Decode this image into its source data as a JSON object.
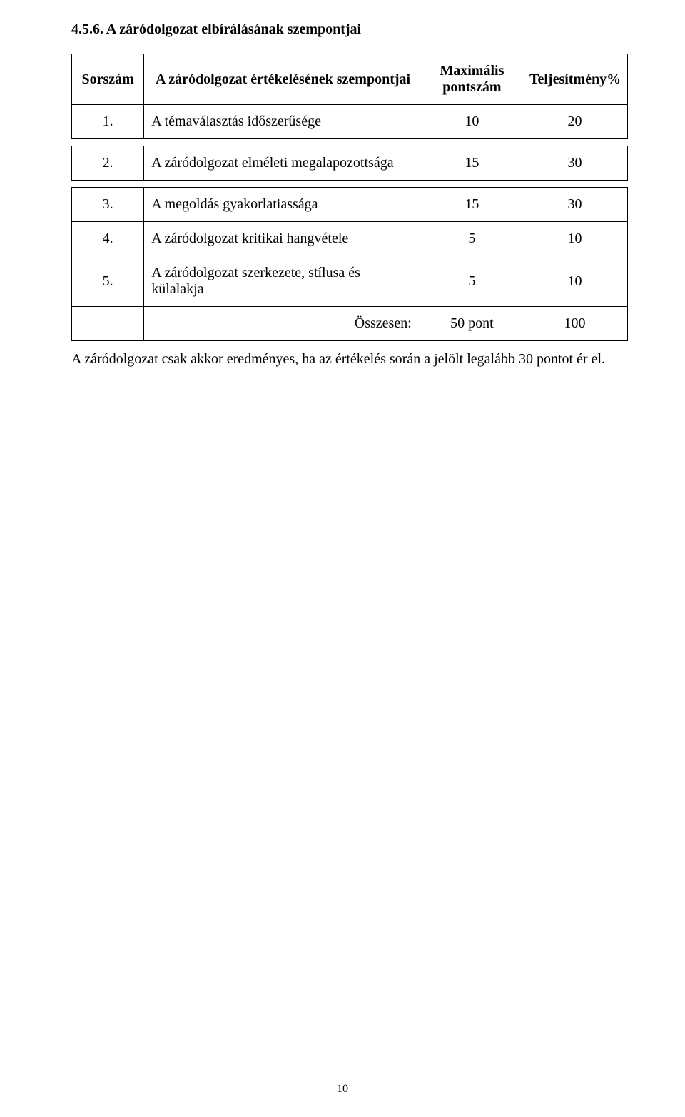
{
  "heading": "4.5.6. A záródolgozat elbírálásának szempontjai",
  "table": {
    "columns": {
      "idx": "Sorszám",
      "szempont": "A záródolgozat értékelésének szempontjai",
      "maxline1": "Maximális",
      "maxline2": "pontszám",
      "teljes": "Teljesítmény%"
    },
    "rows": [
      {
        "idx": "1.",
        "label": "A témaválasztás időszerűsége",
        "max": "10",
        "pct": "20"
      },
      {
        "idx": "2.",
        "label": "A záródolgozat elméleti megalapozottsága",
        "max": "15",
        "pct": "30"
      },
      {
        "idx": "3.",
        "label": "A megoldás gyakorlatiassága",
        "max": "15",
        "pct": "30"
      },
      {
        "idx": "4.",
        "label": "A záródolgozat kritikai hangvétele",
        "max": "5",
        "pct": "10"
      },
      {
        "idx": "5.",
        "label": "A záródolgozat szerkezete, stílusa és külalakja",
        "max": "5",
        "pct": "10"
      }
    ],
    "total": {
      "label": "Összesen:",
      "max": "50 pont",
      "pct": "100"
    }
  },
  "footnote": "A záródolgozat csak akkor eredményes, ha az értékelés során a jelölt legalább 30 pontot ér el.",
  "page_number": "10"
}
